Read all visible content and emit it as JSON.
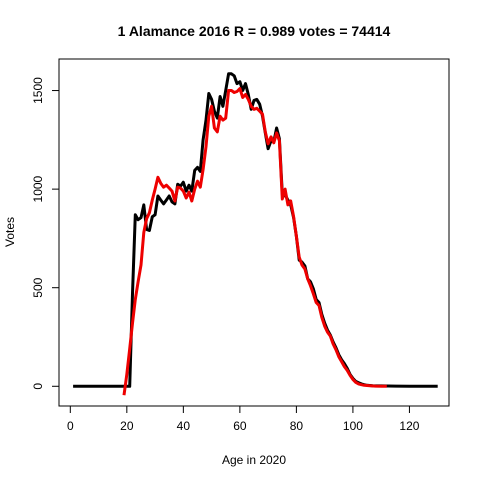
{
  "chart_data": {
    "type": "line",
    "title": "1 Alamance 2016 R = 0.989 votes = 74414",
    "xlabel": "Age in 2020",
    "ylabel": "Votes",
    "xlim": [
      -4,
      134
    ],
    "ylim": [
      -100,
      1660
    ],
    "xticks": [
      0,
      20,
      40,
      60,
      80,
      100,
      120
    ],
    "yticks": [
      0,
      500,
      1000,
      1500
    ],
    "grid": false,
    "colors": {
      "series1": "#000000",
      "series2": "#ee0000"
    },
    "series": [
      {
        "points": [
          [
            1,
            0
          ],
          [
            5,
            0
          ],
          [
            10,
            0
          ],
          [
            15,
            0
          ],
          [
            18,
            0
          ],
          [
            19,
            0
          ],
          [
            20,
            0
          ],
          [
            21,
            0
          ],
          [
            22,
            470
          ],
          [
            23,
            870
          ],
          [
            24,
            845
          ],
          [
            25,
            855
          ],
          [
            26,
            920
          ],
          [
            27,
            795
          ],
          [
            28,
            790
          ],
          [
            29,
            860
          ],
          [
            30,
            870
          ],
          [
            31,
            965
          ],
          [
            32,
            945
          ],
          [
            33,
            925
          ],
          [
            34,
            945
          ],
          [
            35,
            965
          ],
          [
            36,
            935
          ],
          [
            37,
            925
          ],
          [
            38,
            1025
          ],
          [
            39,
            1015
          ],
          [
            40,
            1035
          ],
          [
            41,
            990
          ],
          [
            42,
            1020
          ],
          [
            43,
            990
          ],
          [
            44,
            1095
          ],
          [
            45,
            1110
          ],
          [
            46,
            1090
          ],
          [
            47,
            1250
          ],
          [
            48,
            1350
          ],
          [
            49,
            1485
          ],
          [
            50,
            1455
          ],
          [
            51,
            1395
          ],
          [
            52,
            1360
          ],
          [
            53,
            1470
          ],
          [
            54,
            1420
          ],
          [
            55,
            1500
          ],
          [
            56,
            1585
          ],
          [
            57,
            1585
          ],
          [
            58,
            1575
          ],
          [
            59,
            1535
          ],
          [
            60,
            1545
          ],
          [
            61,
            1500
          ],
          [
            62,
            1535
          ],
          [
            63,
            1480
          ],
          [
            64,
            1405
          ],
          [
            65,
            1450
          ],
          [
            66,
            1455
          ],
          [
            67,
            1430
          ],
          [
            68,
            1370
          ],
          [
            69,
            1285
          ],
          [
            70,
            1205
          ],
          [
            71,
            1245
          ],
          [
            72,
            1240
          ],
          [
            73,
            1310
          ],
          [
            74,
            1255
          ],
          [
            75,
            975
          ],
          [
            76,
            970
          ],
          [
            77,
            945
          ],
          [
            78,
            920
          ],
          [
            79,
            855
          ],
          [
            80,
            760
          ],
          [
            81,
            640
          ],
          [
            82,
            630
          ],
          [
            83,
            610
          ],
          [
            84,
            545
          ],
          [
            85,
            530
          ],
          [
            86,
            495
          ],
          [
            87,
            440
          ],
          [
            88,
            425
          ],
          [
            89,
            365
          ],
          [
            90,
            320
          ],
          [
            91,
            285
          ],
          [
            92,
            260
          ],
          [
            93,
            225
          ],
          [
            94,
            195
          ],
          [
            95,
            160
          ],
          [
            96,
            135
          ],
          [
            97,
            115
          ],
          [
            98,
            90
          ],
          [
            99,
            60
          ],
          [
            100,
            40
          ],
          [
            101,
            25
          ],
          [
            102,
            18
          ],
          [
            103,
            12
          ],
          [
            104,
            8
          ],
          [
            105,
            5
          ],
          [
            107,
            3
          ],
          [
            110,
            2
          ],
          [
            115,
            1
          ],
          [
            120,
            0
          ],
          [
            125,
            0
          ],
          [
            130,
            0
          ]
        ]
      },
      {
        "points": [
          [
            19,
            -45
          ],
          [
            20,
            60
          ],
          [
            21,
            190
          ],
          [
            22,
            320
          ],
          [
            23,
            440
          ],
          [
            24,
            530
          ],
          [
            25,
            615
          ],
          [
            26,
            780
          ],
          [
            27,
            850
          ],
          [
            28,
            880
          ],
          [
            29,
            945
          ],
          [
            30,
            1000
          ],
          [
            31,
            1060
          ],
          [
            32,
            1030
          ],
          [
            33,
            1010
          ],
          [
            34,
            1020
          ],
          [
            35,
            1005
          ],
          [
            36,
            990
          ],
          [
            37,
            940
          ],
          [
            38,
            1010
          ],
          [
            39,
            1005
          ],
          [
            40,
            990
          ],
          [
            41,
            955
          ],
          [
            42,
            985
          ],
          [
            43,
            940
          ],
          [
            44,
            1000
          ],
          [
            45,
            1040
          ],
          [
            46,
            1010
          ],
          [
            47,
            1100
          ],
          [
            48,
            1215
          ],
          [
            49,
            1370
          ],
          [
            50,
            1420
          ],
          [
            51,
            1310
          ],
          [
            52,
            1290
          ],
          [
            53,
            1370
          ],
          [
            54,
            1350
          ],
          [
            55,
            1360
          ],
          [
            56,
            1500
          ],
          [
            57,
            1500
          ],
          [
            58,
            1490
          ],
          [
            59,
            1495
          ],
          [
            60,
            1510
          ],
          [
            61,
            1465
          ],
          [
            62,
            1480
          ],
          [
            63,
            1455
          ],
          [
            64,
            1420
          ],
          [
            65,
            1405
          ],
          [
            66,
            1410
          ],
          [
            67,
            1395
          ],
          [
            68,
            1380
          ],
          [
            69,
            1290
          ],
          [
            70,
            1230
          ],
          [
            71,
            1265
          ],
          [
            72,
            1235
          ],
          [
            73,
            1285
          ],
          [
            74,
            1245
          ],
          [
            75,
            950
          ],
          [
            76,
            1000
          ],
          [
            77,
            920
          ],
          [
            78,
            940
          ],
          [
            79,
            860
          ],
          [
            80,
            760
          ],
          [
            81,
            655
          ],
          [
            82,
            615
          ],
          [
            83,
            595
          ],
          [
            84,
            545
          ],
          [
            85,
            510
          ],
          [
            86,
            470
          ],
          [
            87,
            425
          ],
          [
            88,
            410
          ],
          [
            89,
            350
          ],
          [
            90,
            305
          ],
          [
            91,
            275
          ],
          [
            92,
            255
          ],
          [
            93,
            215
          ],
          [
            94,
            185
          ],
          [
            95,
            150
          ],
          [
            96,
            125
          ],
          [
            97,
            100
          ],
          [
            98,
            80
          ],
          [
            99,
            55
          ],
          [
            100,
            35
          ],
          [
            101,
            20
          ],
          [
            102,
            12
          ],
          [
            103,
            8
          ],
          [
            104,
            5
          ],
          [
            106,
            3
          ],
          [
            108,
            1
          ],
          [
            112,
            0
          ]
        ]
      }
    ]
  }
}
